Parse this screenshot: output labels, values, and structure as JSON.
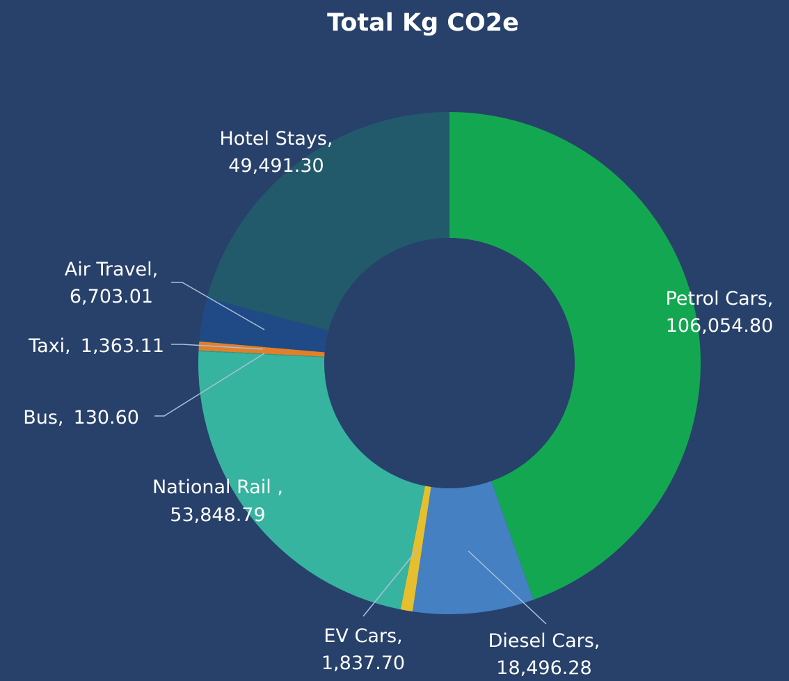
{
  "chart_data": {
    "type": "donut",
    "title": "Total Kg CO2e",
    "categories": [
      "Petrol Cars,",
      "Diesel Cars,",
      "EV Cars,",
      "National Rail ,",
      "Bus,",
      "Taxi,",
      "Air Travel,",
      "Hotel Stays,"
    ],
    "values": [
      106054.8,
      18496.28,
      1837.7,
      53848.79,
      130.6,
      1363.11,
      6703.01,
      49491.3
    ],
    "value_labels": [
      "106,054.80",
      "18,496.28",
      "1,837.70",
      "53,848.79",
      "130.60",
      "1,363.11",
      "6,703.01",
      "49,491.30"
    ],
    "colors": [
      "#14a751",
      "#4480c2",
      "#e6bf2f",
      "#36b49f",
      "#2f9f8c",
      "#e0802a",
      "#1f4a85",
      "#225a6b"
    ]
  }
}
